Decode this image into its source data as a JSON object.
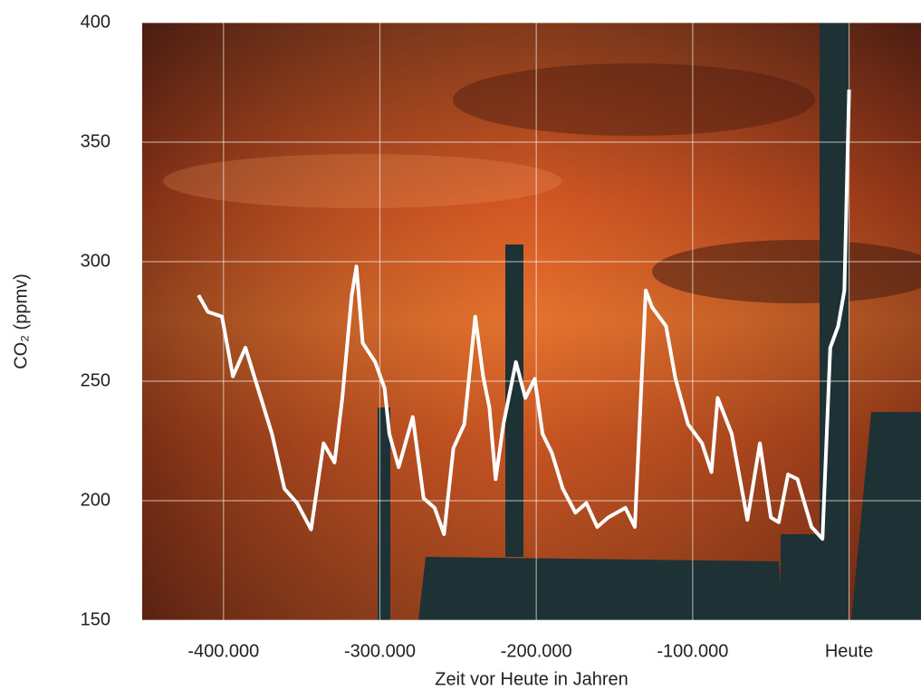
{
  "chart_data": {
    "type": "line",
    "y_label": "CO₂ (ppmv)",
    "x_label": "Zeit vor Heute in Jahren",
    "x": [
      -416000,
      -410000,
      -401000,
      -394000,
      -386000,
      -378000,
      -369000,
      -361000,
      -353000,
      -344000,
      -336000,
      -329000,
      -324000,
      -318000,
      -315000,
      -311000,
      -303000,
      -297000,
      -294000,
      -288000,
      -279000,
      -272000,
      -265000,
      -259000,
      -253000,
      -246000,
      -239000,
      -234000,
      -230000,
      -226000,
      -221000,
      -213000,
      -207000,
      -201000,
      -196000,
      -190000,
      -183000,
      -175000,
      -168000,
      -161000,
      -154000,
      -143000,
      -137000,
      -130000,
      -126000,
      -117000,
      -111000,
      -103000,
      -94000,
      -88000,
      -84000,
      -75000,
      -65000,
      -57000,
      -50000,
      -45000,
      -39000,
      -33000,
      -24000,
      -17000,
      -12000,
      -7000,
      -3000,
      0
    ],
    "values": [
      286,
      279,
      277,
      252,
      264,
      247,
      228,
      205,
      199,
      188,
      224,
      216,
      243,
      286,
      298,
      266,
      258,
      247,
      228,
      214,
      235,
      201,
      197,
      186,
      222,
      232,
      277,
      252,
      239,
      209,
      232,
      258,
      243,
      251,
      228,
      220,
      205,
      195,
      199,
      189,
      193,
      197,
      189,
      288,
      281,
      273,
      251,
      232,
      224,
      212,
      243,
      228,
      192,
      224,
      193,
      191,
      211,
      209,
      189,
      184,
      264,
      273,
      288,
      372
    ],
    "color": "#ffffff",
    "xlim": [
      -452000,
      46000
    ],
    "xticks": [
      {
        "value": -400000,
        "label": "-400.000"
      },
      {
        "value": -300000,
        "label": "-300.000"
      },
      {
        "value": -200000,
        "label": "-200.000"
      },
      {
        "value": -100000,
        "label": "-100.000"
      },
      {
        "value": 0,
        "label": "Heute"
      }
    ],
    "ylim": [
      150,
      400
    ],
    "yticks": [
      150,
      200,
      250,
      300,
      350,
      400
    ],
    "grid": true
  }
}
